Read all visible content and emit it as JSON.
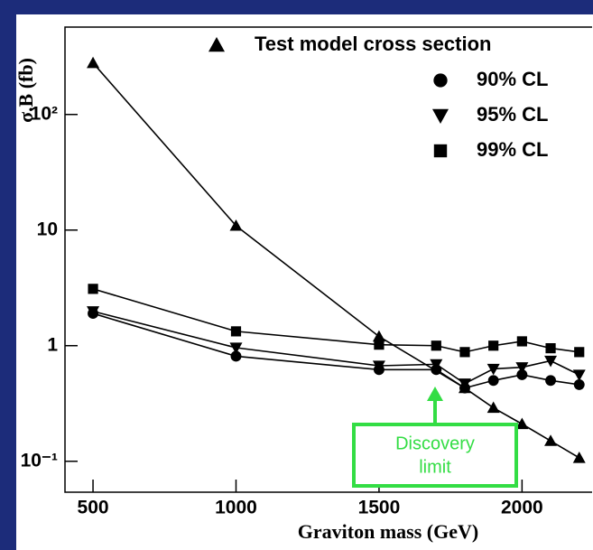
{
  "chart_data": {
    "type": "line",
    "x_label": "Graviton mass (GeV)",
    "y_label": "σ.B (fb)",
    "ylog": true,
    "xlim": [
      402,
      2245
    ],
    "ylim": [
      0.054,
      570
    ],
    "xticks": [
      500,
      1000,
      1500,
      2000
    ],
    "yticks": [
      {
        "value": 100,
        "label": "10²"
      },
      10,
      1,
      {
        "value": 0.1,
        "label": "10⁻¹"
      }
    ],
    "series": [
      {
        "name": "Test model cross section",
        "marker": "triangle-up",
        "color": "#000000",
        "x": [
          500,
          1000,
          1500,
          1800,
          1900,
          2000,
          2100,
          2200
        ],
        "values": [
          279,
          10.9,
          1.2,
          0.43,
          0.29,
          0.21,
          0.15,
          0.107
        ]
      },
      {
        "name": "90% CL",
        "marker": "circle",
        "color": "#000000",
        "x": [
          500,
          1000,
          1500,
          1700,
          1800,
          1900,
          2000,
          2100,
          2200
        ],
        "values": [
          1.9,
          0.81,
          0.62,
          0.62,
          0.43,
          0.5,
          0.56,
          0.5,
          0.46
        ]
      },
      {
        "name": "95% CL",
        "marker": "triangle-down",
        "color": "#000000",
        "x": [
          500,
          1000,
          1500,
          1700,
          1800,
          1900,
          2000,
          2100,
          2200
        ],
        "values": [
          1.98,
          0.96,
          0.67,
          0.69,
          0.47,
          0.63,
          0.65,
          0.74,
          0.56
        ]
      },
      {
        "name": "99% CL",
        "marker": "square",
        "color": "#000000",
        "x": [
          500,
          1000,
          1500,
          1700,
          1800,
          1900,
          2000,
          2100,
          2200
        ],
        "values": [
          3.1,
          1.33,
          1.02,
          1.0,
          0.88,
          1.0,
          1.09,
          0.95,
          0.88
        ]
      }
    ],
    "annotation": {
      "lines": [
        "Discovery",
        "limit"
      ],
      "color": "#33dd44"
    }
  }
}
